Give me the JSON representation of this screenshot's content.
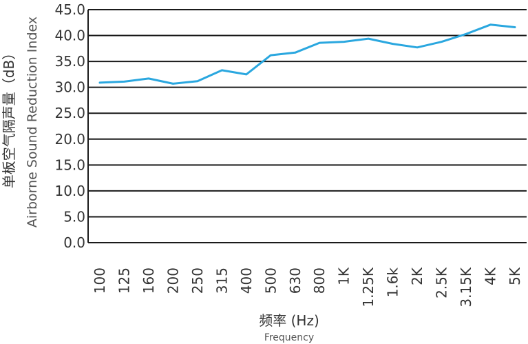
{
  "chart_data": {
    "type": "line",
    "title": "",
    "ylabel_cn": "单板空气隔声量（dB）",
    "ylabel_en": "Airborne Sound Reduction Index",
    "xlabel_cn": "频率 (Hz)",
    "xlabel_en": "Frequency",
    "ylim": [
      0,
      45
    ],
    "yticks": [
      "0.0",
      "5.0",
      "10.0",
      "15.0",
      "20.0",
      "25.0",
      "30.0",
      "35.0",
      "40.0",
      "45.0"
    ],
    "yticks_values": [
      0,
      5,
      10,
      15,
      20,
      25,
      30,
      35,
      40,
      45
    ],
    "categories": [
      "100",
      "125",
      "160",
      "200",
      "250",
      "315",
      "400",
      "500",
      "630",
      "800",
      "1K",
      "1.25K",
      "1.6k",
      "2K",
      "2.5K",
      "3.15K",
      "4K",
      "5K"
    ],
    "series": [
      {
        "values": [
          30.9,
          31.1,
          31.7,
          30.7,
          31.2,
          33.3,
          32.5,
          36.2,
          36.7,
          38.6,
          38.8,
          39.4,
          38.4,
          37.7,
          38.8,
          40.3,
          42.1,
          41.6
        ]
      }
    ],
    "grid": "horizontal",
    "line_color": "#2aa7df",
    "grid_color": "#1a1a1a"
  }
}
